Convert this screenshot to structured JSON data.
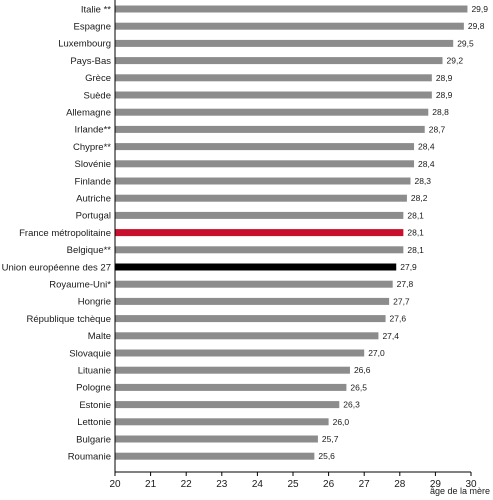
{
  "chart_data": {
    "type": "bar",
    "orientation": "horizontal",
    "title": "",
    "xlabel": "âge de la mère",
    "ylabel": "",
    "xlim": [
      20,
      30
    ],
    "x_ticks": [
      "20",
      "21",
      "22",
      "23",
      "24",
      "25",
      "26",
      "27",
      "28",
      "29",
      "30"
    ],
    "grid": false,
    "categories": [
      "Italie **",
      "Espagne",
      "Luxembourg",
      "Pays-Bas",
      "Grèce",
      "Suède",
      "Allemagne",
      "Irlande**",
      "Chypre**",
      "Slovénie",
      "Finlande",
      "Autriche",
      "Portugal",
      "France métropolitaine",
      "Belgique**",
      "Union européenne des 27",
      "Royaume-Uni*",
      "Hongrie",
      "République tchèque",
      "Malte",
      "Slovaquie",
      "Lituanie",
      "Pologne",
      "Estonie",
      "Lettonie",
      "Bulgarie",
      "Roumanie"
    ],
    "values": [
      29.9,
      29.8,
      29.5,
      29.2,
      28.9,
      28.9,
      28.8,
      28.7,
      28.4,
      28.4,
      28.3,
      28.2,
      28.1,
      28.1,
      28.1,
      27.9,
      27.8,
      27.7,
      27.6,
      27.4,
      27.0,
      26.6,
      26.5,
      26.3,
      26.0,
      25.7,
      25.6
    ],
    "value_labels": [
      "29,9",
      "29,8",
      "29,5",
      "29,2",
      "28,9",
      "28,9",
      "28,8",
      "28,7",
      "28,4",
      "28,4",
      "28,3",
      "28,2",
      "28,1",
      "28,1",
      "28,1",
      "27,9",
      "27,8",
      "27,7",
      "27,6",
      "27,4",
      "27,0",
      "26,6",
      "26,5",
      "26,3",
      "26,0",
      "25,7",
      "25,6"
    ],
    "highlight": {
      "France métropolitaine": "#c8102e",
      "Union européenne des 27": "#000000"
    }
  },
  "colors": {
    "bar": "#8c8c8c",
    "axis": "#000000"
  }
}
